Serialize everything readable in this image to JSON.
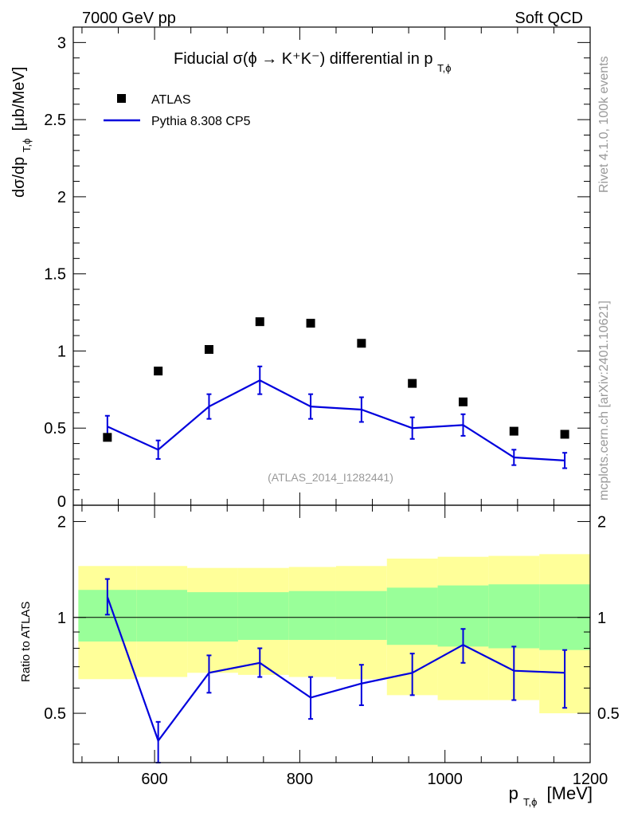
{
  "header": {
    "left": "7000 GeV pp",
    "right": "Soft QCD"
  },
  "side": {
    "rivet": "Rivet 4.1.0,  100k events",
    "mcplots": "mcplots.cern.ch [arXiv:2401.10621]"
  },
  "colors": {
    "mc": "#0000dd",
    "data": "#000000",
    "band_inner": "#99ff99",
    "band_outer": "#ffff99",
    "label_grey": "#999999"
  },
  "chart_data": {
    "type": "scatter",
    "title": {
      "main": "Fiducial σ(ϕ → K⁺K⁻) differential in p",
      "sub": "T,ϕ"
    },
    "analysis": "(ATLAS_2014_I1282441)",
    "xlabel": {
      "main": "p",
      "sub": "T,ϕ",
      "unit": "[MeV]"
    },
    "ylabel": {
      "main": "dσ/dp",
      "sub": "T,ϕ",
      "unit": "[μb/MeV]"
    },
    "ratio_ylabel": "Ratio to ATLAS",
    "xlim": [
      488,
      1200
    ],
    "ylim": [
      0,
      3.1
    ],
    "ratio_ylim": [
      0.35,
      2.25
    ],
    "x_ticks": [
      600,
      800,
      1000,
      1200
    ],
    "y_ticks": [
      {
        "v": 0,
        "label": "0"
      },
      {
        "v": 0.5,
        "label": "0.5"
      },
      {
        "v": 1,
        "label": "1"
      },
      {
        "v": 1.5,
        "label": "1.5"
      },
      {
        "v": 2,
        "label": "2"
      },
      {
        "v": 2.5,
        "label": "2.5"
      },
      {
        "v": 3,
        "label": "3"
      }
    ],
    "ratio_ticks": [
      {
        "v": 0.5,
        "label": "0.5"
      },
      {
        "v": 1,
        "label": "1"
      },
      {
        "v": 2,
        "label": "2"
      }
    ],
    "legend": {
      "data": "ATLAS",
      "mc": "Pythia 8.308 CP5"
    },
    "data": {
      "name": "ATLAS",
      "x": [
        535,
        605,
        675,
        745,
        815,
        885,
        955,
        1025,
        1095,
        1165
      ],
      "y": [
        0.44,
        0.87,
        1.01,
        1.19,
        1.18,
        1.05,
        0.79,
        0.67,
        0.48,
        0.46
      ]
    },
    "mc": {
      "name": "Pythia 8.308 CP5",
      "x": [
        535,
        605,
        675,
        745,
        815,
        885,
        955,
        1025,
        1095,
        1165
      ],
      "y": [
        0.51,
        0.36,
        0.64,
        0.81,
        0.64,
        0.62,
        0.5,
        0.52,
        0.31,
        0.29
      ],
      "yerr": [
        0.07,
        0.06,
        0.08,
        0.09,
        0.08,
        0.08,
        0.07,
        0.07,
        0.05,
        0.05
      ],
      "ratio": [
        1.16,
        0.41,
        0.67,
        0.72,
        0.56,
        0.62,
        0.67,
        0.82,
        0.68,
        0.67
      ],
      "ratio_lo": [
        1.02,
        0.35,
        0.58,
        0.65,
        0.48,
        0.53,
        0.57,
        0.72,
        0.55,
        0.52
      ],
      "ratio_hi": [
        1.32,
        0.47,
        0.76,
        0.8,
        0.65,
        0.71,
        0.77,
        0.92,
        0.81,
        0.79
      ]
    },
    "bands": {
      "edges": [
        495,
        575,
        645,
        715,
        785,
        850,
        920,
        990,
        1060,
        1130,
        1200
      ],
      "inner_lo": [
        0.84,
        0.84,
        0.84,
        0.85,
        0.85,
        0.85,
        0.82,
        0.81,
        0.8,
        0.79
      ],
      "inner_hi": [
        1.22,
        1.22,
        1.2,
        1.2,
        1.21,
        1.21,
        1.24,
        1.26,
        1.27,
        1.27
      ],
      "outer_lo": [
        0.64,
        0.65,
        0.67,
        0.66,
        0.65,
        0.64,
        0.57,
        0.55,
        0.55,
        0.5
      ],
      "outer_hi": [
        1.45,
        1.45,
        1.43,
        1.43,
        1.44,
        1.45,
        1.53,
        1.55,
        1.56,
        1.58
      ]
    }
  }
}
